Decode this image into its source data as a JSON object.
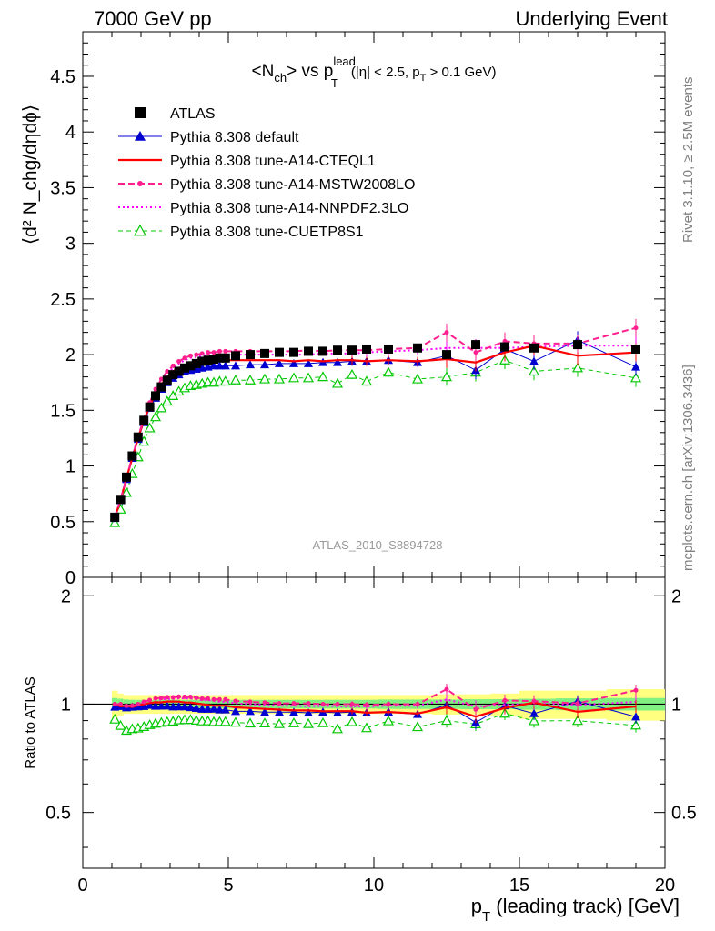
{
  "header": {
    "left": "7000 GeV pp",
    "right": "Underlying Event"
  },
  "side_labels": {
    "rivet": "Rivet 3.1.10, ≥ 2.5M events",
    "mcplots": "mcplots.cern.ch [arXiv:1306.3436]"
  },
  "analysis_id": "ATLAS_2010_S8894728",
  "chart_data": {
    "type": "line",
    "title": "<N_ch> vs p_T^lead (|η| < 2.5, p_T > 0.1 GeV)",
    "title_parts": {
      "nch": "<N",
      "nch_sub": "ch",
      "vs": "> vs p",
      "pt_sup": "lead",
      "pt_sub": "T",
      "cut_a": "(|η| < 2.5, p",
      "cut_sub": "T",
      "cut_b": " > 0.1 GeV)"
    },
    "xlabel": "p_T (leading track) [GeV]",
    "xlabel_parts": {
      "p": "p",
      "sub": "T",
      "rest": " (leading track) [GeV]"
    },
    "ylabel": "⟨d² N_chg/dηdϕ⟩",
    "ratio_ylabel": "Ratio to ATLAS",
    "xlim": [
      0,
      20
    ],
    "ylim": [
      0,
      4.9
    ],
    "ratio_ylim": [
      0.35,
      2.25
    ],
    "x_ticks": [
      "0",
      "5",
      "10",
      "15",
      "20"
    ],
    "y_ticks": [
      "0",
      "0.5",
      "1",
      "1.5",
      "2",
      "2.5",
      "3",
      "3.5",
      "4",
      "4.5"
    ],
    "ratio_ticks": [
      "0.5",
      "1",
      "2"
    ],
    "x": [
      1.1,
      1.3,
      1.5,
      1.7,
      1.9,
      2.1,
      2.3,
      2.5,
      2.7,
      2.9,
      3.1,
      3.3,
      3.5,
      3.7,
      3.9,
      4.1,
      4.3,
      4.5,
      4.7,
      4.9,
      5.25,
      5.75,
      6.25,
      6.75,
      7.25,
      7.75,
      8.25,
      8.75,
      9.25,
      9.75,
      10.5,
      11.5,
      12.5,
      13.5,
      14.5,
      15.5,
      17.0,
      19.0
    ],
    "series": [
      {
        "name": "ATLAS",
        "color": "#000000",
        "values": [
          0.54,
          0.7,
          0.9,
          1.09,
          1.26,
          1.41,
          1.53,
          1.63,
          1.71,
          1.77,
          1.82,
          1.85,
          1.88,
          1.9,
          1.92,
          1.94,
          1.95,
          1.96,
          1.97,
          1.97,
          1.99,
          2.0,
          2.01,
          2.02,
          2.02,
          2.03,
          2.03,
          2.04,
          2.04,
          2.05,
          2.05,
          2.06,
          2.0,
          2.09,
          2.07,
          2.06,
          2.09,
          2.05
        ]
      },
      {
        "name": "Pythia 8.308 default",
        "color": "#0000d0",
        "values": [
          0.53,
          0.69,
          0.88,
          1.07,
          1.24,
          1.39,
          1.52,
          1.61,
          1.69,
          1.75,
          1.79,
          1.82,
          1.85,
          1.86,
          1.87,
          1.88,
          1.89,
          1.9,
          1.9,
          1.9,
          1.9,
          1.91,
          1.91,
          1.92,
          1.92,
          1.92,
          1.93,
          1.93,
          1.94,
          1.94,
          1.95,
          1.93,
          1.99,
          1.86,
          2.05,
          1.94,
          2.13,
          1.89
        ]
      },
      {
        "name": "Pythia 8.308 tune-A14-CTEQL1",
        "color": "#ff0000",
        "values": [
          0.54,
          0.69,
          0.89,
          1.07,
          1.25,
          1.41,
          1.54,
          1.65,
          1.73,
          1.8,
          1.85,
          1.88,
          1.9,
          1.92,
          1.93,
          1.94,
          1.94,
          1.94,
          1.95,
          1.95,
          1.95,
          1.95,
          1.95,
          1.95,
          1.94,
          1.95,
          1.94,
          1.95,
          1.95,
          1.94,
          1.95,
          1.94,
          1.96,
          1.93,
          2.02,
          2.08,
          1.99,
          2.02
        ]
      },
      {
        "name": "Pythia 8.308 tune-A14-MSTW2008LO",
        "color": "#ff1f8f",
        "values": [
          0.54,
          0.7,
          0.89,
          1.08,
          1.26,
          1.43,
          1.57,
          1.69,
          1.78,
          1.85,
          1.9,
          1.94,
          1.97,
          1.99,
          2.0,
          2.01,
          2.02,
          2.02,
          2.03,
          2.03,
          2.03,
          2.03,
          2.03,
          2.03,
          2.03,
          2.04,
          2.03,
          2.04,
          2.04,
          2.04,
          2.05,
          2.06,
          2.2,
          2.02,
          2.12,
          2.1,
          2.1,
          2.24
        ]
      },
      {
        "name": "Pythia 8.308 tune-A14-NNPDF2.3LO",
        "color": "#ff00ff",
        "values": [
          0.54,
          0.7,
          0.89,
          1.08,
          1.26,
          1.43,
          1.57,
          1.68,
          1.76,
          1.83,
          1.88,
          1.92,
          1.95,
          1.97,
          1.98,
          1.99,
          2.0,
          2.0,
          2.0,
          2.0,
          2.0,
          2.0,
          2.0,
          2.0,
          2.0,
          2.0,
          2.01,
          2.01,
          2.01,
          2.02,
          2.03,
          2.04,
          2.06,
          2.06,
          2.06,
          2.07,
          2.08,
          2.08
        ]
      },
      {
        "name": "Pythia 8.308 tune-CUETP8S1",
        "color": "#00c800",
        "values": [
          0.49,
          0.61,
          0.76,
          0.93,
          1.08,
          1.22,
          1.34,
          1.44,
          1.52,
          1.58,
          1.63,
          1.67,
          1.7,
          1.72,
          1.73,
          1.74,
          1.75,
          1.75,
          1.76,
          1.76,
          1.77,
          1.77,
          1.78,
          1.78,
          1.79,
          1.79,
          1.8,
          1.74,
          1.82,
          1.76,
          1.84,
          1.78,
          1.8,
          1.84,
          1.95,
          1.85,
          1.88,
          1.79
        ]
      }
    ],
    "ratio_band": {
      "green_halfwidth": [
        0.04,
        0.035,
        0.03,
        0.028,
        0.028,
        0.028,
        0.028,
        0.028,
        0.028,
        0.028,
        0.028,
        0.028,
        0.028,
        0.028,
        0.028,
        0.028,
        0.028,
        0.028,
        0.028,
        0.028,
        0.028,
        0.028,
        0.028,
        0.028,
        0.028,
        0.028,
        0.028,
        0.028,
        0.028,
        0.028,
        0.03,
        0.03,
        0.03,
        0.032,
        0.032,
        0.035,
        0.038,
        0.04
      ],
      "yellow_halfwidth": [
        0.09,
        0.07,
        0.06,
        0.06,
        0.06,
        0.06,
        0.06,
        0.06,
        0.06,
        0.06,
        0.06,
        0.06,
        0.06,
        0.06,
        0.06,
        0.06,
        0.06,
        0.06,
        0.06,
        0.06,
        0.06,
        0.06,
        0.06,
        0.06,
        0.06,
        0.06,
        0.06,
        0.06,
        0.06,
        0.06,
        0.06,
        0.06,
        0.065,
        0.065,
        0.07,
        0.09,
        0.09,
        0.1
      ]
    },
    "legend_placement": "top-left",
    "grid": false
  }
}
